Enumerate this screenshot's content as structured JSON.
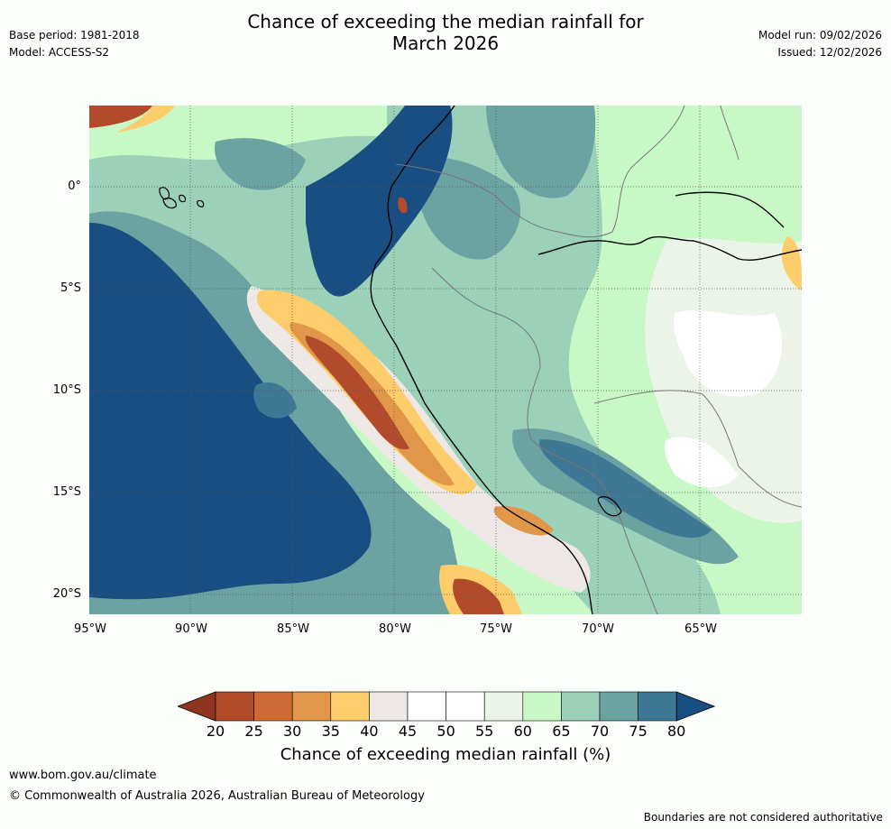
{
  "title": {
    "line1": "Chance of exceeding the median rainfall for",
    "line2": "March 2026"
  },
  "meta": {
    "base_period": "Base period: 1981-2018",
    "model": "Model: ACCESS-S2",
    "model_run": "Model run: 09/02/2026",
    "issued": "Issued: 12/02/2026"
  },
  "map": {
    "lat_labels": [
      "0°",
      "5°S",
      "10°S",
      "15°S",
      "20°S"
    ],
    "lon_labels": [
      "95°W",
      "90°W",
      "85°W",
      "80°W",
      "75°W",
      "70°W",
      "65°W"
    ]
  },
  "legend": {
    "label": "Chance of exceeding median rainfall (%)",
    "ticks": [
      "20",
      "25",
      "30",
      "35",
      "40",
      "45",
      "50",
      "55",
      "60",
      "65",
      "70",
      "75",
      "80"
    ],
    "colors": [
      "#8e3520",
      "#b24b2b",
      "#ce6a33",
      "#e1974a",
      "#fdcd6c",
      "#ede8e5",
      "#ffffff",
      "#ffffff",
      "#ecf4ea",
      "#c9f8c7",
      "#9bd1b8",
      "#6ba3a3",
      "#3f7894",
      "#184e82"
    ]
  },
  "footer": {
    "url": "www.bom.gov.au/climate",
    "copyright": "© Commonwealth of Australia 2026, Australian Bureau of Meteorology",
    "note": "Boundaries are not considered authoritative"
  }
}
